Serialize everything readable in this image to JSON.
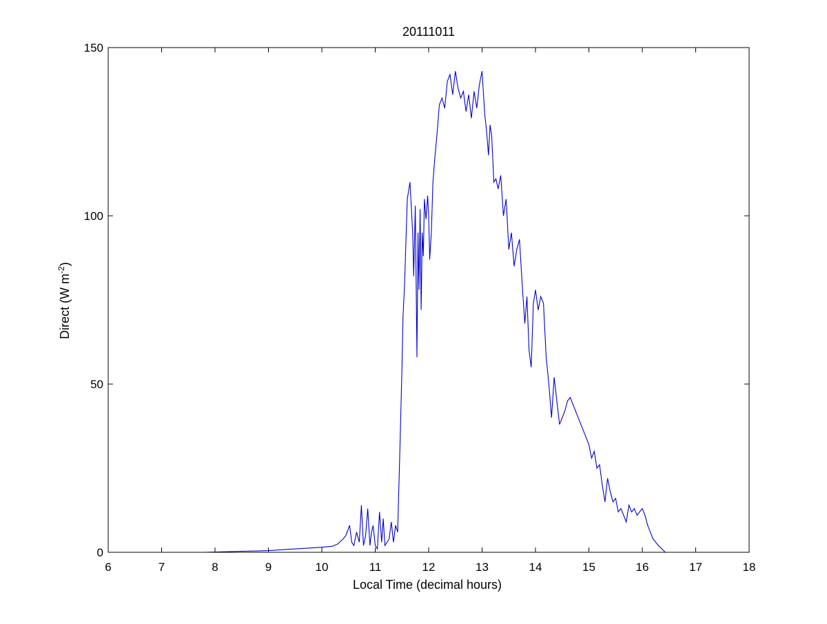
{
  "chart_data": {
    "type": "line",
    "title": "20111011",
    "xlabel": "Local Time (decimal hours)",
    "ylabel_main": "Direct (W m",
    "ylabel_sup": "-2",
    "ylabel_close": ")",
    "xlim": [
      6,
      18
    ],
    "ylim": [
      0,
      150
    ],
    "xticks": [
      6,
      7,
      8,
      9,
      10,
      11,
      12,
      13,
      14,
      15,
      16,
      17,
      18
    ],
    "yticks": [
      0,
      50,
      100,
      150
    ],
    "grid": false,
    "line_color": "#0000cc",
    "series": [
      {
        "x": [
          6.4,
          7.0,
          7.8,
          8.5,
          9.0,
          9.3,
          9.5,
          9.8,
          10.0,
          10.2,
          10.3,
          10.4,
          10.45,
          10.52,
          10.56,
          10.6,
          10.65,
          10.7,
          10.74,
          10.78,
          10.82,
          10.86,
          10.9,
          10.93,
          10.96,
          11.0,
          11.04,
          11.08,
          11.12,
          11.15,
          11.18,
          11.22,
          11.26,
          11.3,
          11.34,
          11.38,
          11.42,
          11.46,
          11.5,
          11.52,
          11.55,
          11.6,
          11.65,
          11.7,
          11.72,
          11.75,
          11.78,
          11.8,
          11.82,
          11.84,
          11.86,
          11.88,
          11.9,
          11.92,
          11.95,
          11.98,
          12.0,
          12.02,
          12.05,
          12.08,
          12.12,
          12.16,
          12.2,
          12.25,
          12.3,
          12.35,
          12.4,
          12.45,
          12.5,
          12.55,
          12.6,
          12.65,
          12.7,
          12.75,
          12.8,
          12.85,
          12.9,
          12.95,
          13.0,
          13.05,
          13.08,
          13.12,
          13.15,
          13.18,
          13.22,
          13.26,
          13.3,
          13.35,
          13.4,
          13.45,
          13.5,
          13.55,
          13.6,
          13.65,
          13.7,
          13.75,
          13.8,
          13.84,
          13.88,
          13.92,
          13.96,
          14.0,
          14.05,
          14.1,
          14.15,
          14.2,
          14.25,
          14.3,
          14.35,
          14.4,
          14.45,
          14.5,
          14.55,
          14.6,
          14.65,
          14.7,
          14.75,
          14.8,
          14.85,
          14.9,
          14.95,
          15.0,
          15.05,
          15.1,
          15.15,
          15.2,
          15.25,
          15.3,
          15.35,
          15.4,
          15.45,
          15.5,
          15.55,
          15.6,
          15.65,
          15.7,
          15.75,
          15.8,
          15.85,
          15.9,
          15.95,
          16.0,
          16.05,
          16.1,
          16.15,
          16.2,
          16.3,
          16.4,
          16.43
        ],
        "y": [
          0,
          0,
          0,
          0.3,
          0.5,
          0.8,
          1.0,
          1.3,
          1.5,
          1.8,
          2.5,
          4,
          5,
          8,
          3,
          2,
          6,
          3,
          14,
          2,
          5,
          13,
          2,
          6,
          8,
          2,
          1,
          12,
          3,
          10,
          2,
          3,
          4,
          9,
          3,
          8,
          6,
          30,
          55,
          70,
          80,
          105,
          110,
          95,
          82,
          103,
          58,
          95,
          78,
          102,
          72,
          95,
          88,
          105,
          99,
          106,
          100,
          87,
          95,
          110,
          118,
          125,
          133,
          135,
          132,
          140,
          142,
          136,
          143,
          138,
          135,
          137,
          131,
          136,
          129,
          137,
          132,
          139,
          143,
          130,
          126,
          118,
          127,
          124,
          110,
          111,
          108,
          112,
          100,
          105,
          90,
          95,
          85,
          90,
          93,
          80,
          68,
          76,
          60,
          55,
          74,
          78,
          72,
          76,
          74,
          58,
          50,
          40,
          52,
          45,
          38,
          40,
          42,
          45,
          46,
          44,
          42,
          40,
          38,
          36,
          34,
          32,
          28,
          30,
          25,
          26,
          20,
          15,
          22,
          18,
          15,
          16,
          12,
          13,
          11,
          9,
          14,
          12,
          13,
          11,
          12,
          13,
          11,
          8,
          6,
          4,
          2,
          0.5,
          0
        ]
      }
    ]
  }
}
